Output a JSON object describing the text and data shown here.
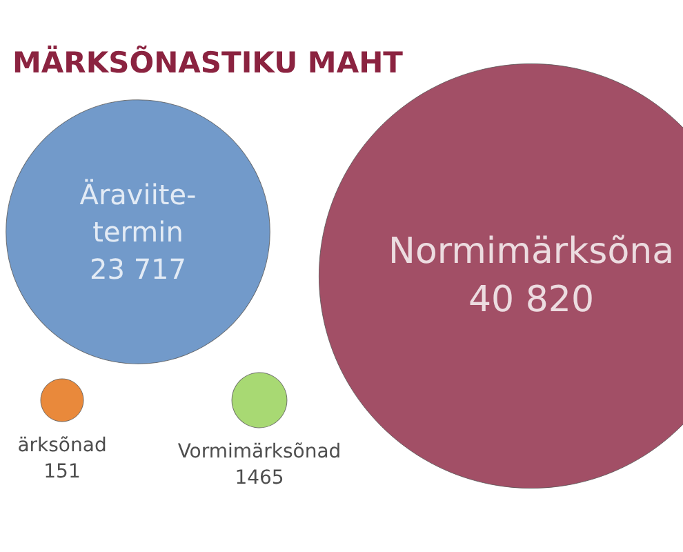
{
  "chart_data": {
    "type": "other",
    "title": "MÄRKSÕNASTIKU MAHT",
    "categories": [
      "Äraviite-termin",
      "Normimärksõna",
      "ärksõnad",
      "Vormimärksõnad"
    ],
    "values": [
      23717,
      40820,
      151,
      1465
    ],
    "value_labels": [
      "23 717",
      "40 820",
      "151",
      "1465"
    ],
    "colors": [
      "#4f81bd",
      "#8b2340",
      "#e36c0a",
      "#92d050"
    ]
  }
}
